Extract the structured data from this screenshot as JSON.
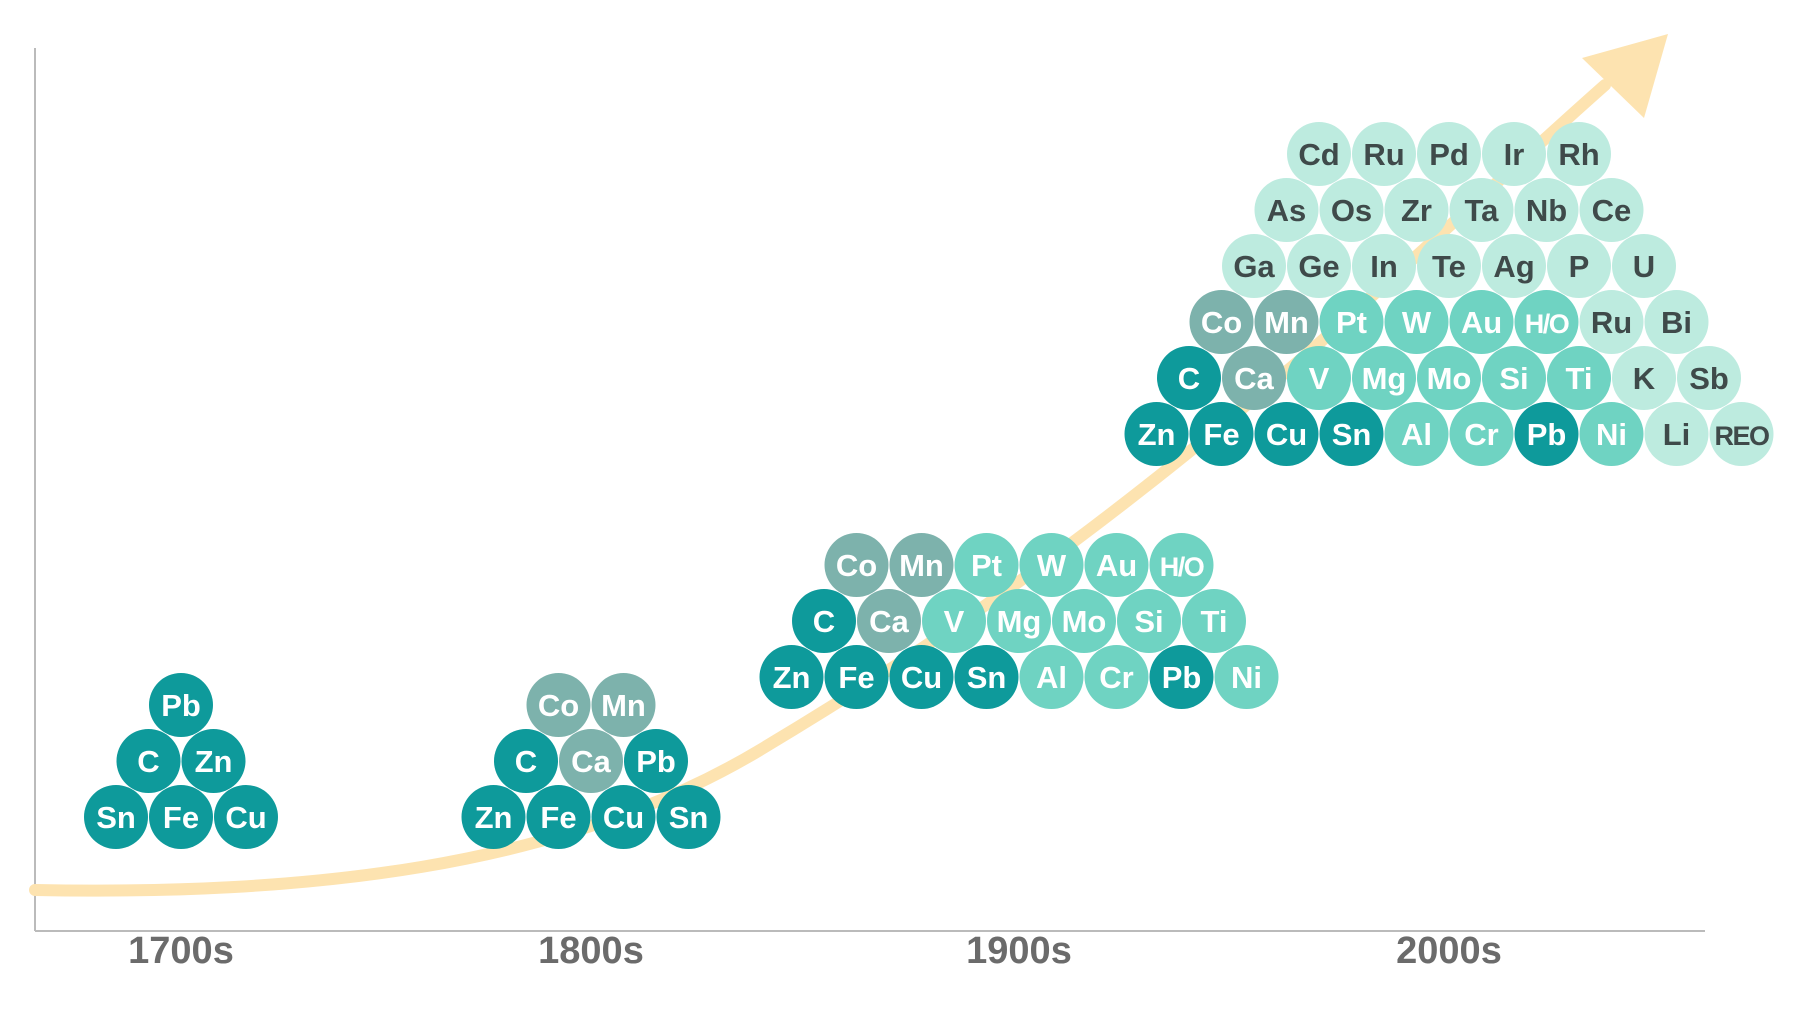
{
  "colors": {
    "teal_dark": "#0e9a9b",
    "teal_gray": "#7db2ac",
    "teal_mid": "#6fd3c2",
    "teal_light": "#bdebdf",
    "curve": "#fde3b0",
    "axis": "#bbbbbb",
    "label_white": "#ffffff",
    "label_dark": "#3f4a4a",
    "era_label": "#6b6b6b"
  },
  "eras": [
    {
      "label": "1700s",
      "rows": [
        [
          {
            "el": "Pb",
            "c": "teal_dark"
          }
        ],
        [
          {
            "el": "C",
            "c": "teal_dark"
          },
          {
            "el": "Zn",
            "c": "teal_dark"
          }
        ],
        [
          {
            "el": "Sn",
            "c": "teal_dark"
          },
          {
            "el": "Fe",
            "c": "teal_dark"
          },
          {
            "el": "Cu",
            "c": "teal_dark"
          }
        ]
      ]
    },
    {
      "label": "1800s",
      "rows": [
        [
          {
            "el": "Co",
            "c": "teal_gray"
          },
          {
            "el": "Mn",
            "c": "teal_gray"
          }
        ],
        [
          {
            "el": "C",
            "c": "teal_dark"
          },
          {
            "el": "Ca",
            "c": "teal_gray"
          },
          {
            "el": "Pb",
            "c": "teal_dark"
          }
        ],
        [
          {
            "el": "Zn",
            "c": "teal_dark"
          },
          {
            "el": "Fe",
            "c": "teal_dark"
          },
          {
            "el": "Cu",
            "c": "teal_dark"
          },
          {
            "el": "Sn",
            "c": "teal_dark"
          }
        ]
      ]
    },
    {
      "label": "1900s",
      "rows": [
        [
          {
            "el": "Co",
            "c": "teal_gray"
          },
          {
            "el": "Mn",
            "c": "teal_gray"
          },
          {
            "el": "Pt",
            "c": "teal_mid"
          },
          {
            "el": "W",
            "c": "teal_mid"
          },
          {
            "el": "Au",
            "c": "teal_mid"
          },
          {
            "el": "H/O",
            "c": "teal_mid"
          }
        ],
        [
          {
            "el": "C",
            "c": "teal_dark"
          },
          {
            "el": "Ca",
            "c": "teal_gray"
          },
          {
            "el": "V",
            "c": "teal_mid"
          },
          {
            "el": "Mg",
            "c": "teal_mid"
          },
          {
            "el": "Mo",
            "c": "teal_mid"
          },
          {
            "el": "Si",
            "c": "teal_mid"
          },
          {
            "el": "Ti",
            "c": "teal_mid"
          }
        ],
        [
          {
            "el": "Zn",
            "c": "teal_dark"
          },
          {
            "el": "Fe",
            "c": "teal_dark"
          },
          {
            "el": "Cu",
            "c": "teal_dark"
          },
          {
            "el": "Sn",
            "c": "teal_dark"
          },
          {
            "el": "Al",
            "c": "teal_mid"
          },
          {
            "el": "Cr",
            "c": "teal_mid"
          },
          {
            "el": "Pb",
            "c": "teal_dark"
          },
          {
            "el": "Ni",
            "c": "teal_mid"
          }
        ]
      ]
    },
    {
      "label": "2000s",
      "rows": [
        [
          {
            "el": "Cd",
            "c": "teal_light"
          },
          {
            "el": "Ru",
            "c": "teal_light"
          },
          {
            "el": "Pd",
            "c": "teal_light"
          },
          {
            "el": "Ir",
            "c": "teal_light"
          },
          {
            "el": "Rh",
            "c": "teal_light"
          }
        ],
        [
          {
            "el": "As",
            "c": "teal_light"
          },
          {
            "el": "Os",
            "c": "teal_light"
          },
          {
            "el": "Zr",
            "c": "teal_light"
          },
          {
            "el": "Ta",
            "c": "teal_light"
          },
          {
            "el": "Nb",
            "c": "teal_light"
          },
          {
            "el": "Ce",
            "c": "teal_light"
          }
        ],
        [
          {
            "el": "Ga",
            "c": "teal_light"
          },
          {
            "el": "Ge",
            "c": "teal_light"
          },
          {
            "el": "In",
            "c": "teal_light"
          },
          {
            "el": "Te",
            "c": "teal_light"
          },
          {
            "el": "Ag",
            "c": "teal_light"
          },
          {
            "el": "P",
            "c": "teal_light"
          },
          {
            "el": "U",
            "c": "teal_light"
          }
        ],
        [
          {
            "el": "Co",
            "c": "teal_gray"
          },
          {
            "el": "Mn",
            "c": "teal_gray"
          },
          {
            "el": "Pt",
            "c": "teal_mid"
          },
          {
            "el": "W",
            "c": "teal_mid"
          },
          {
            "el": "Au",
            "c": "teal_mid"
          },
          {
            "el": "H/O",
            "c": "teal_mid"
          },
          {
            "el": "Ru",
            "c": "teal_light"
          },
          {
            "el": "Bi",
            "c": "teal_light"
          }
        ],
        [
          {
            "el": "C",
            "c": "teal_dark"
          },
          {
            "el": "Ca",
            "c": "teal_gray"
          },
          {
            "el": "V",
            "c": "teal_mid"
          },
          {
            "el": "Mg",
            "c": "teal_mid"
          },
          {
            "el": "Mo",
            "c": "teal_mid"
          },
          {
            "el": "Si",
            "c": "teal_mid"
          },
          {
            "el": "Ti",
            "c": "teal_mid"
          },
          {
            "el": "K",
            "c": "teal_light"
          },
          {
            "el": "Sb",
            "c": "teal_light"
          }
        ],
        [
          {
            "el": "Zn",
            "c": "teal_dark"
          },
          {
            "el": "Fe",
            "c": "teal_dark"
          },
          {
            "el": "Cu",
            "c": "teal_dark"
          },
          {
            "el": "Sn",
            "c": "teal_dark"
          },
          {
            "el": "Al",
            "c": "teal_mid"
          },
          {
            "el": "Cr",
            "c": "teal_mid"
          },
          {
            "el": "Pb",
            "c": "teal_dark"
          },
          {
            "el": "Ni",
            "c": "teal_mid"
          },
          {
            "el": "Li",
            "c": "teal_light"
          },
          {
            "el": "REO",
            "c": "teal_light"
          }
        ]
      ]
    }
  ]
}
